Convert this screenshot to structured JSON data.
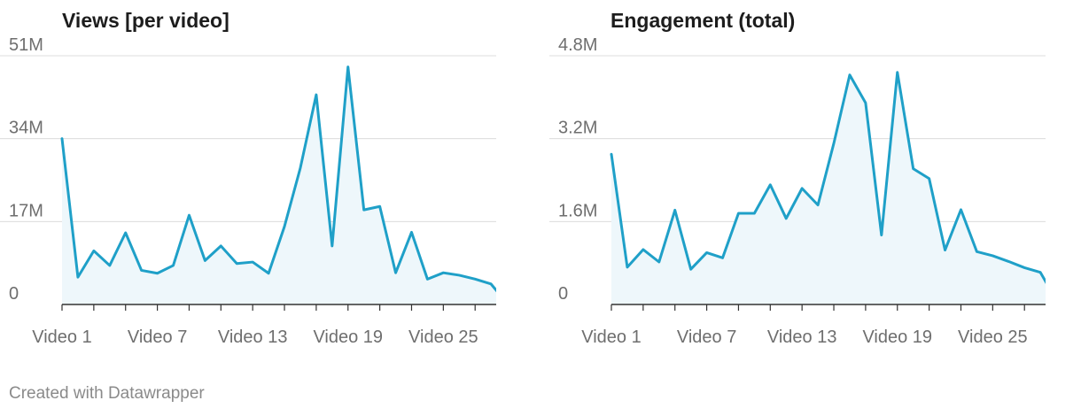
{
  "chart_data": [
    {
      "type": "area",
      "title": "Views [per video]",
      "xlabel": "",
      "ylabel": "",
      "ylim": [
        0,
        51000000
      ],
      "yticks": [
        0,
        17000000,
        34000000,
        51000000
      ],
      "ytick_labels": [
        "0",
        "17M",
        "34M",
        "51M"
      ],
      "x_tick_labels": [
        "Video 1",
        "Video 7",
        "Video 13",
        "Video 19",
        "Video 25"
      ],
      "x_tick_labels_at": [
        1,
        7,
        13,
        19,
        25
      ],
      "x_tick_marks": [
        1,
        3,
        5,
        7,
        9,
        11,
        13,
        15,
        17,
        19,
        21,
        23,
        25,
        27,
        29
      ],
      "grid": true,
      "line_color": "#1fa0c8",
      "fill_color": "#eef7fb",
      "series": [
        {
          "x": [
            1,
            2,
            3,
            4,
            5,
            6,
            7,
            8,
            9,
            10,
            11,
            12,
            13,
            14,
            15,
            16,
            17,
            18,
            19,
            20,
            21,
            22,
            23,
            24,
            25,
            26,
            27,
            28,
            29,
            30
          ],
          "values": [
            34000000,
            5600000,
            11000000,
            8000000,
            14700000,
            7000000,
            6400000,
            8000000,
            18300000,
            9000000,
            12000000,
            8400000,
            8700000,
            6400000,
            16000000,
            28000000,
            43000000,
            12000000,
            48700000,
            19400000,
            20100000,
            6500000,
            14800000,
            5200000,
            6500000,
            6000000,
            5200000,
            4200000,
            300000,
            700000
          ]
        }
      ]
    },
    {
      "type": "area",
      "title": "Engagement (total)",
      "xlabel": "",
      "ylabel": "",
      "ylim": [
        0,
        4800000
      ],
      "yticks": [
        0,
        1600000,
        3200000,
        4800000
      ],
      "ytick_labels": [
        "0",
        "1.6M",
        "3.2M",
        "4.8M"
      ],
      "x_tick_labels": [
        "Video 1",
        "Video 7",
        "Video 13",
        "Video 19",
        "Video 25"
      ],
      "x_tick_labels_at": [
        1,
        7,
        13,
        19,
        25
      ],
      "x_tick_marks": [
        1,
        3,
        5,
        7,
        9,
        11,
        13,
        15,
        17,
        19,
        21,
        23,
        25,
        27,
        29
      ],
      "grid": true,
      "line_color": "#1fa0c8",
      "fill_color": "#eef7fb",
      "series": [
        {
          "x": [
            1,
            2,
            3,
            4,
            5,
            6,
            7,
            8,
            9,
            10,
            11,
            12,
            13,
            14,
            15,
            16,
            17,
            18,
            19,
            20,
            21,
            22,
            23,
            24,
            25,
            26,
            27,
            28,
            29,
            30
          ],
          "values": [
            2900000,
            720000,
            1060000,
            820000,
            1820000,
            680000,
            1000000,
            900000,
            1760000,
            1760000,
            2310000,
            1660000,
            2240000,
            1920000,
            3110000,
            4430000,
            3890000,
            1340000,
            4480000,
            2620000,
            2430000,
            1050000,
            1830000,
            1020000,
            940000,
            830000,
            710000,
            620000,
            90000,
            140000
          ]
        }
      ]
    }
  ],
  "footer": {
    "credit": "Created with Datawrapper"
  }
}
